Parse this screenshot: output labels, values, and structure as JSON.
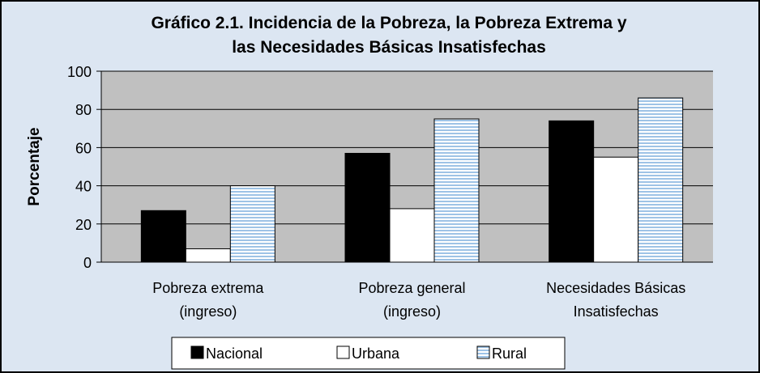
{
  "chart_data": {
    "type": "bar",
    "title": "Gráfico 2.1. Incidencia de la Pobreza, la Pobreza Extrema y\nlas Necesidades Básicas Insatisfechas",
    "y_label": "Porcentaje",
    "categories": [
      "Pobreza extrema\n(ingreso)",
      "Pobreza general\n(ingreso)",
      "Necesidades Básicas\nInsatisfechas"
    ],
    "series": [
      {
        "name": "Nacional",
        "color": "#000000",
        "values": [
          27,
          57,
          74
        ]
      },
      {
        "name": "Urbana",
        "color": "#ffffff",
        "values": [
          7,
          28,
          55
        ]
      },
      {
        "name": "Rural",
        "color": "#bdd7ee",
        "values": [
          40,
          75,
          86
        ]
      }
    ],
    "ylim": [
      0,
      100
    ],
    "yticks": [
      0,
      20,
      40,
      60,
      80,
      100
    ],
    "grid": true,
    "legend": "bottom"
  }
}
